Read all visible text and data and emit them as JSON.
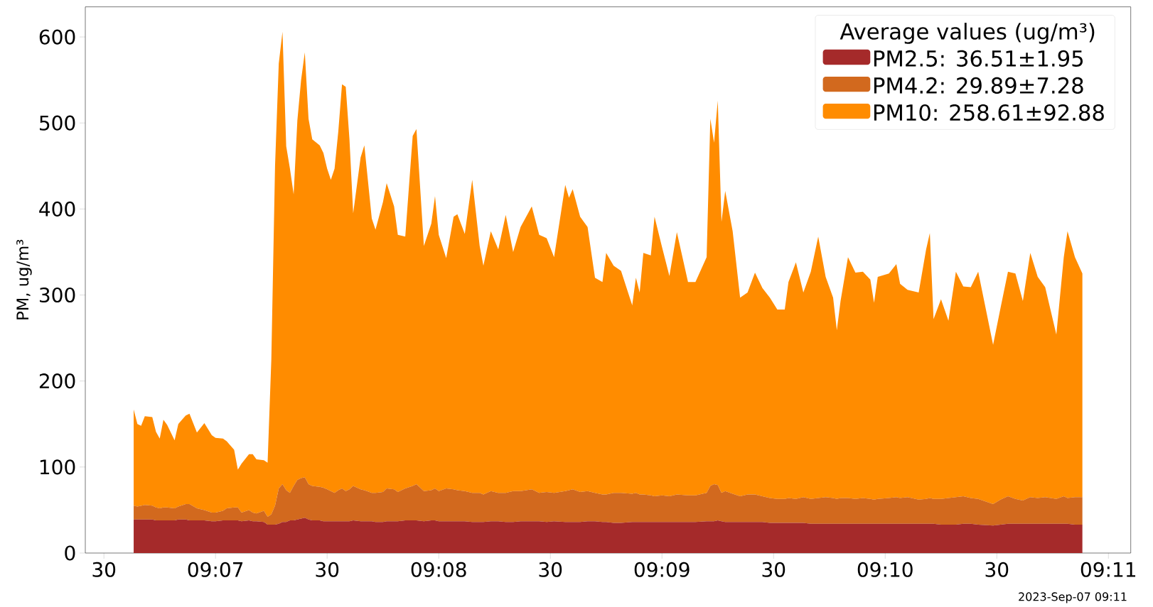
{
  "chart_data": {
    "type": "area",
    "stacked": true,
    "ylabel": "PM, ug/m³",
    "legend_title": "Average values (ug/m³)",
    "legend": "top right",
    "annotations": [
      "2023-Sep-07 09:11"
    ],
    "xlim": [
      "2023-09-07T09:06:25",
      "2023-09-07T09:11:06"
    ],
    "ylim": [
      0,
      635
    ],
    "xticks": [
      {
        "value": "2023-09-07T09:06:30",
        "label": "30"
      },
      {
        "value": "2023-09-07T09:07:00",
        "label": "09:07"
      },
      {
        "value": "2023-09-07T09:07:30",
        "label": "30"
      },
      {
        "value": "2023-09-07T09:08:00",
        "label": "09:08"
      },
      {
        "value": "2023-09-07T09:08:30",
        "label": "30"
      },
      {
        "value": "2023-09-07T09:09:00",
        "label": "09:09"
      },
      {
        "value": "2023-09-07T09:09:30",
        "label": "30"
      },
      {
        "value": "2023-09-07T09:10:00",
        "label": "09:10"
      },
      {
        "value": "2023-09-07T09:10:30",
        "label": "30"
      },
      {
        "value": "2023-09-07T09:11:00",
        "label": "09:11"
      }
    ],
    "yticks": [
      0,
      100,
      200,
      300,
      400,
      500,
      600
    ],
    "x": [
      "2023-09-07T09:06:38",
      "2023-09-07T09:06:39",
      "2023-09-07T09:06:40",
      "2023-09-07T09:06:41",
      "2023-09-07T09:06:43",
      "2023-09-07T09:06:44",
      "2023-09-07T09:06:45",
      "2023-09-07T09:06:46",
      "2023-09-07T09:06:47",
      "2023-09-07T09:06:49",
      "2023-09-07T09:06:50",
      "2023-09-07T09:06:52",
      "2023-09-07T09:06:53",
      "2023-09-07T09:06:55",
      "2023-09-07T09:06:57",
      "2023-09-07T09:06:59",
      "2023-09-07T09:07:00",
      "2023-09-07T09:07:02",
      "2023-09-07T09:07:03",
      "2023-09-07T09:07:05",
      "2023-09-07T09:07:06",
      "2023-09-07T09:07:07",
      "2023-09-07T09:07:09",
      "2023-09-07T09:07:10",
      "2023-09-07T09:07:11",
      "2023-09-07T09:07:13",
      "2023-09-07T09:07:14",
      "2023-09-07T09:07:15",
      "2023-09-07T09:07:16",
      "2023-09-07T09:07:17",
      "2023-09-07T09:07:18",
      "2023-09-07T09:07:19",
      "2023-09-07T09:07:20",
      "2023-09-07T09:07:21",
      "2023-09-07T09:07:22",
      "2023-09-07T09:07:23",
      "2023-09-07T09:07:24",
      "2023-09-07T09:07:25",
      "2023-09-07T09:07:26",
      "2023-09-07T09:07:28",
      "2023-09-07T09:07:29",
      "2023-09-07T09:07:30",
      "2023-09-07T09:07:31",
      "2023-09-07T09:07:32",
      "2023-09-07T09:07:33",
      "2023-09-07T09:07:34",
      "2023-09-07T09:07:35",
      "2023-09-07T09:07:36",
      "2023-09-07T09:07:37",
      "2023-09-07T09:07:39",
      "2023-09-07T09:07:40",
      "2023-09-07T09:07:42",
      "2023-09-07T09:07:43",
      "2023-09-07T09:07:45",
      "2023-09-07T09:07:46",
      "2023-09-07T09:07:48",
      "2023-09-07T09:07:49",
      "2023-09-07T09:07:51",
      "2023-09-07T09:07:53",
      "2023-09-07T09:07:54",
      "2023-09-07T09:07:56",
      "2023-09-07T09:07:58",
      "2023-09-07T09:07:59",
      "2023-09-07T09:08:00",
      "2023-09-07T09:08:02",
      "2023-09-07T09:08:04",
      "2023-09-07T09:08:05",
      "2023-09-07T09:08:07",
      "2023-09-07T09:08:09",
      "2023-09-07T09:08:11",
      "2023-09-07T09:08:12",
      "2023-09-07T09:08:14",
      "2023-09-07T09:08:16",
      "2023-09-07T09:08:18",
      "2023-09-07T09:08:20",
      "2023-09-07T09:08:22",
      "2023-09-07T09:08:25",
      "2023-09-07T09:08:27",
      "2023-09-07T09:08:29",
      "2023-09-07T09:08:31",
      "2023-09-07T09:08:34",
      "2023-09-07T09:08:35",
      "2023-09-07T09:08:36",
      "2023-09-07T09:08:38",
      "2023-09-07T09:08:40",
      "2023-09-07T09:08:42",
      "2023-09-07T09:08:44",
      "2023-09-07T09:08:45",
      "2023-09-07T09:08:47",
      "2023-09-07T09:08:49",
      "2023-09-07T09:08:52",
      "2023-09-07T09:08:53",
      "2023-09-07T09:08:54",
      "2023-09-07T09:08:55",
      "2023-09-07T09:08:57",
      "2023-09-07T09:08:58",
      "2023-09-07T09:09:00",
      "2023-09-07T09:09:02",
      "2023-09-07T09:09:04",
      "2023-09-07T09:09:07",
      "2023-09-07T09:09:09",
      "2023-09-07T09:09:12",
      "2023-09-07T09:09:13",
      "2023-09-07T09:09:14",
      "2023-09-07T09:09:15",
      "2023-09-07T09:09:16",
      "2023-09-07T09:09:17",
      "2023-09-07T09:09:19",
      "2023-09-07T09:09:21",
      "2023-09-07T09:09:23",
      "2023-09-07T09:09:25",
      "2023-09-07T09:09:27",
      "2023-09-07T09:09:29",
      "2023-09-07T09:09:31",
      "2023-09-07T09:09:33",
      "2023-09-07T09:09:34",
      "2023-09-07T09:09:36",
      "2023-09-07T09:09:38",
      "2023-09-07T09:09:40",
      "2023-09-07T09:09:42",
      "2023-09-07T09:09:44",
      "2023-09-07T09:09:46",
      "2023-09-07T09:09:47",
      "2023-09-07T09:09:48",
      "2023-09-07T09:09:50",
      "2023-09-07T09:09:52",
      "2023-09-07T09:09:54",
      "2023-09-07T09:09:56",
      "2023-09-07T09:09:57",
      "2023-09-07T09:09:58",
      "2023-09-07T09:10:01",
      "2023-09-07T09:10:03",
      "2023-09-07T09:10:04",
      "2023-09-07T09:10:06",
      "2023-09-07T09:10:09",
      "2023-09-07T09:10:11",
      "2023-09-07T09:10:12",
      "2023-09-07T09:10:13",
      "2023-09-07T09:10:15",
      "2023-09-07T09:10:17",
      "2023-09-07T09:10:19",
      "2023-09-07T09:10:21",
      "2023-09-07T09:10:23",
      "2023-09-07T09:10:25",
      "2023-09-07T09:10:29",
      "2023-09-07T09:10:31",
      "2023-09-07T09:10:33",
      "2023-09-07T09:10:35",
      "2023-09-07T09:10:37",
      "2023-09-07T09:10:39",
      "2023-09-07T09:10:41",
      "2023-09-07T09:10:43",
      "2023-09-07T09:10:46",
      "2023-09-07T09:10:48",
      "2023-09-07T09:10:49",
      "2023-09-07T09:10:51",
      "2023-09-07T09:10:53"
    ],
    "series": [
      {
        "name": "PM2.5: 36.51±1.95",
        "color": "#a52a2a",
        "values": [
          39,
          39,
          39,
          39,
          39,
          38,
          38,
          38,
          38,
          38,
          39,
          39,
          38,
          38,
          38,
          37,
          37,
          38,
          38,
          38,
          38,
          37,
          38,
          37,
          37,
          36,
          33,
          33,
          33,
          34,
          36,
          36,
          38,
          38,
          39,
          40,
          41,
          39,
          38,
          38,
          37,
          37,
          37,
          37,
          37,
          37,
          37,
          37,
          38,
          37,
          37,
          37,
          36,
          36,
          37,
          37,
          37,
          38,
          38,
          38,
          37,
          38,
          38,
          37,
          37,
          37,
          37,
          37,
          36,
          36,
          36,
          37,
          37,
          36,
          36,
          37,
          37,
          37,
          36,
          37,
          36,
          36,
          36,
          36,
          37,
          37,
          36,
          36,
          35,
          35,
          36,
          36,
          36,
          36,
          36,
          36,
          36,
          36,
          36,
          36,
          36,
          37,
          37,
          37,
          38,
          37,
          36,
          36,
          36,
          36,
          36,
          36,
          35,
          35,
          35,
          35,
          35,
          35,
          34,
          34,
          34,
          34,
          34,
          34,
          34,
          34,
          34,
          34,
          34,
          34,
          34,
          34,
          34,
          34,
          34,
          34,
          34,
          34,
          33,
          33,
          33,
          34,
          34,
          33,
          32,
          33,
          34,
          34,
          34,
          34,
          34,
          34,
          34,
          34,
          34,
          33,
          33
        ]
      },
      {
        "name": "PM4.2: 29.89±7.28",
        "color": "#d2691e",
        "values": [
          16,
          15,
          16,
          17,
          16,
          15,
          14,
          15,
          15,
          14,
          15,
          18,
          19,
          14,
          12,
          10,
          10,
          11,
          14,
          15,
          15,
          10,
          12,
          10,
          9,
          13,
          9,
          12,
          22,
          41,
          44,
          37,
          32,
          40,
          46,
          47,
          47,
          41,
          40,
          39,
          39,
          37,
          35,
          33,
          36,
          38,
          35,
          37,
          40,
          37,
          36,
          33,
          34,
          35,
          38,
          37,
          34,
          37,
          40,
          42,
          35,
          35,
          37,
          35,
          38,
          37,
          36,
          35,
          34,
          34,
          32,
          35,
          33,
          34,
          36,
          35,
          37,
          33,
          35,
          33,
          36,
          37,
          38,
          35,
          35,
          33,
          32,
          32,
          35,
          35,
          33,
          34,
          32,
          32,
          31,
          30,
          31,
          30,
          32,
          31,
          31,
          33,
          41,
          43,
          41,
          33,
          36,
          33,
          30,
          32,
          32,
          30,
          29,
          28,
          28,
          29,
          28,
          30,
          29,
          30,
          31,
          30,
          29,
          30,
          30,
          29,
          30,
          29,
          28,
          29,
          30,
          31,
          30,
          31,
          28,
          29,
          30,
          29,
          30,
          31,
          32,
          32,
          30,
          30,
          25,
          29,
          32,
          29,
          27,
          31,
          30,
          31,
          29,
          32,
          30,
          32,
          32
        ]
      },
      {
        "name": "PM10: 258.61±92.88",
        "color": "#ff8c00",
        "values": [
          112,
          96,
          93,
          103,
          103,
          88,
          81,
          102,
          96,
          79,
          96,
          103,
          105,
          88,
          101,
          90,
          87,
          84,
          78,
          67,
          44,
          57,
          65,
          68,
          63,
          59,
          63,
          180,
          395,
          494,
          526,
          400,
          377,
          339,
          418,
          463,
          494,
          425,
          403,
          397,
          389,
          373,
          362,
          377,
          417,
          470,
          470,
          407,
          317,
          386,
          401,
          319,
          306,
          337,
          355,
          329,
          299,
          293,
          407,
          413,
          285,
          310,
          340,
          298,
          268,
          317,
          321,
          299,
          364,
          287,
          266,
          302,
          283,
          323,
          278,
          307,
          329,
          300,
          295,
          274,
          356,
          340,
          349,
          320,
          307,
          250,
          247,
          281,
          264,
          258,
          219,
          250,
          235,
          281,
          279,
          325,
          289,
          256,
          305,
          248,
          248,
          274,
          427,
          397,
          447,
          315,
          349,
          305,
          231,
          235,
          258,
          242,
          233,
          220,
          220,
          251,
          275,
          238,
          264,
          304,
          256,
          233,
          196,
          229,
          280,
          263,
          263,
          255,
          229,
          258,
          261,
          271,
          249,
          241,
          241,
          290,
          308,
          209,
          232,
          206,
          262,
          244,
          245,
          264,
          185,
          223,
          261,
          262,
          232,
          284,
          257,
          244,
          191,
          278,
          310,
          279,
          260
        ]
      }
    ]
  }
}
